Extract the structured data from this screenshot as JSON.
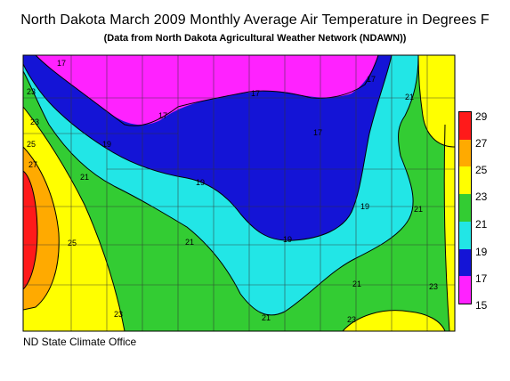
{
  "title": "North Dakota March 2009 Monthly Average Air Temperature in Degrees F",
  "subtitle": "(Data from North Dakota Agricultural Weather Network (NDAWN))",
  "footer": "ND State Climate Office",
  "legend": {
    "items": [
      {
        "label": "29",
        "color": "#ff1a1a"
      },
      {
        "label": "27",
        "color": "#ffa500"
      },
      {
        "label": "25",
        "color": "#ffff00"
      },
      {
        "label": "23",
        "color": "#33cc33"
      },
      {
        "label": "21",
        "color": "#00dddd"
      },
      {
        "label": "19",
        "color": "#1414d6"
      },
      {
        "label": "17",
        "color": "#ff1aff"
      },
      {
        "label": "15",
        "color": "#ffffff"
      }
    ]
  },
  "colors": {
    "band_15_17": "#ff22ff",
    "band_17_19": "#1414d6",
    "band_19_21": "#22e6e6",
    "band_21_23": "#33cc33",
    "band_23_25": "#ffff00",
    "band_25_27": "#ffaa00",
    "band_27_29": "#ff1a1a"
  },
  "contour_labels": [
    "17",
    "17",
    "17",
    "17",
    "17",
    "19",
    "19",
    "19",
    "19",
    "21",
    "21",
    "21",
    "21",
    "21",
    "21",
    "23",
    "23",
    "23",
    "23",
    "23",
    "25",
    "25",
    "27"
  ]
}
